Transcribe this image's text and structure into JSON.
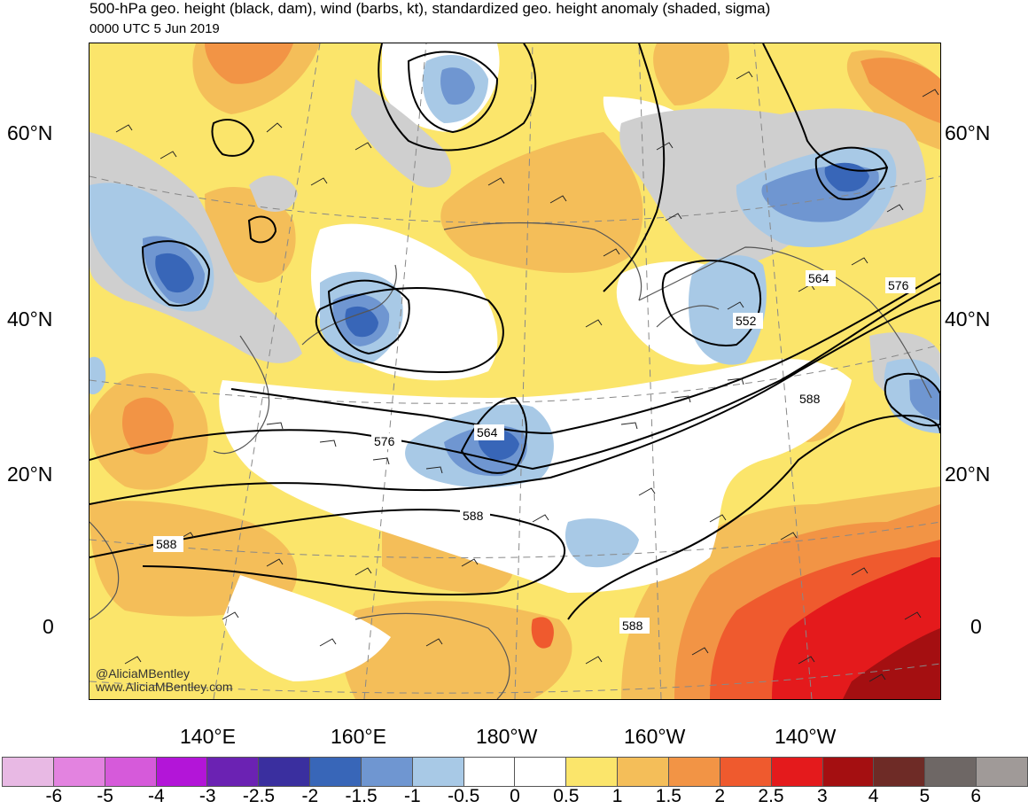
{
  "header": {
    "title": "500-hPa geo. height (black, dam), wind (barbs, kt), standardized geo. height anomaly (shaded, sigma)",
    "subtitle": "0000 UTC 5 Jun 2019"
  },
  "latitude_labels": [
    "60°N",
    "40°N",
    "20°N",
    "0"
  ],
  "longitude_labels": [
    "140°E",
    "160°E",
    "180°W",
    "160°W",
    "140°W"
  ],
  "contour_labels": [
    "564",
    "552",
    "588",
    "564",
    "576",
    "588",
    "588",
    "576",
    "588"
  ],
  "credit": {
    "handle": "@AliciaMBentley",
    "website": "www.AliciaMBentley.com"
  },
  "colorbar": {
    "colors": [
      "#e8b9e4",
      "#e383e0",
      "#d65ada",
      "#b315d8",
      "#6b22b3",
      "#3a2f9f",
      "#3866b8",
      "#6f96d1",
      "#a8c9e6",
      "#ffffff",
      "#ffffff",
      "#fbe56b",
      "#f4be59",
      "#f29445",
      "#ef5a2e",
      "#e41a1c",
      "#a40f11",
      "#6e2b26",
      "#6e6765",
      "#a09a98"
    ],
    "labels": [
      "-6",
      "-5",
      "-4",
      "-3",
      "-2.5",
      "-2",
      "-1.5",
      "-1",
      "-0.5",
      "0",
      "0.5",
      "1",
      "1.5",
      "2",
      "2.5",
      "3",
      "4",
      "5",
      "6"
    ]
  },
  "colors": {
    "land_outline": "#555555",
    "contour": "#000000",
    "graticule": "#888888",
    "undefined_land": "#cfcfcf"
  }
}
